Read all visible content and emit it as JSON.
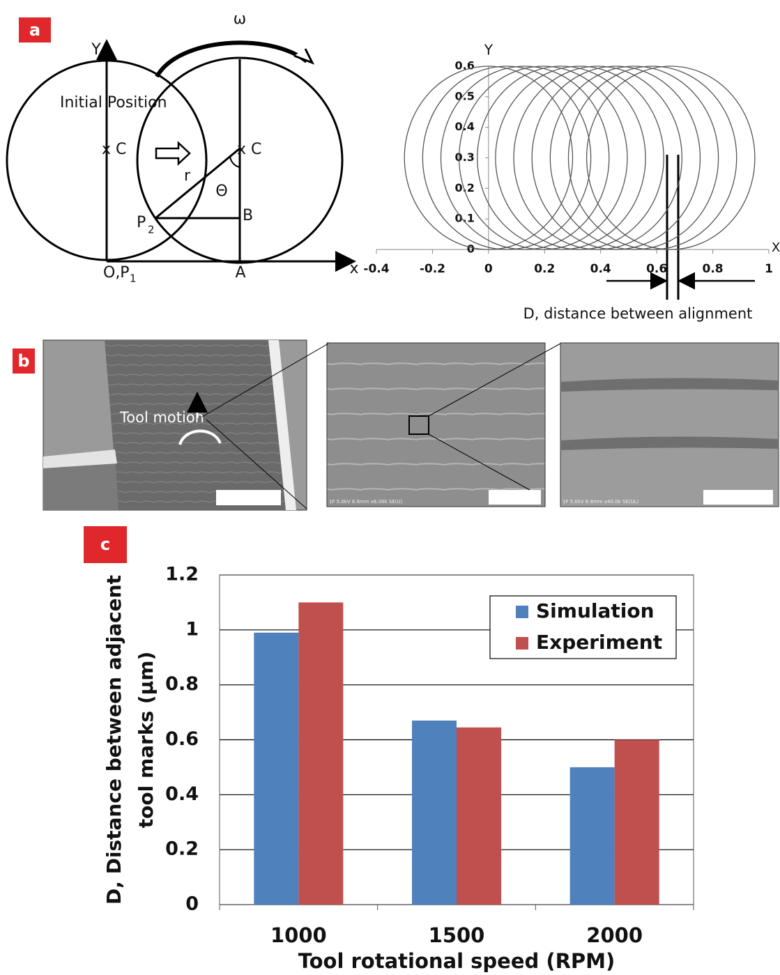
{
  "panel_a": {
    "label": "a",
    "omega": "ω",
    "y_axis": "Y",
    "x_axis": "x",
    "initial_position": "Initial Position",
    "center_left": "x C",
    "center_right": "x C",
    "radius": "r",
    "angle": "Θ",
    "p2": {
      "text": "P",
      "sub": "2"
    },
    "b_point": "B",
    "origin": {
      "text": "O,P",
      "sub": "1"
    },
    "a_point": "A"
  },
  "panel_b": {
    "label": "b",
    "tool_motion": "Tool motion",
    "sem_caption_1": "1F 5.0kV 6.6mm x6.00k SE(U)",
    "sem_caption_2": "1F 5.0kV 6.6mm x40.0k SE(UL)"
  },
  "panel_c": {
    "label": "c"
  },
  "chart_data": [
    {
      "type": "circle",
      "x_label": "X",
      "y_label": "Y",
      "annotation": "D, distance between alignment",
      "circles": {
        "cx": [
          0,
          0.065,
          0.13,
          0.195,
          0.26,
          0.325,
          0.39,
          0.455,
          0.52,
          0.585,
          0.65
        ],
        "cy": 0.3,
        "r": 0.3
      },
      "color": "#555555",
      "xlim": [
        -0.4,
        1
      ],
      "ylim": [
        0,
        0.6
      ],
      "xticks": [
        -0.4,
        -0.2,
        0,
        0.2,
        0.4,
        0.6,
        0.8,
        1
      ],
      "yticks": [
        0,
        0.1,
        0.2,
        0.3,
        0.4,
        0.5,
        0.6
      ]
    },
    {
      "type": "bar",
      "x_label": "Tool rotational speed (RPM)",
      "y_label": [
        "D, Distance between adjacent",
        "tool marks  (µm)"
      ],
      "categories": [
        "1000",
        "1500",
        "2000"
      ],
      "series": [
        {
          "name": "Simulation",
          "color": "#4f81bd",
          "values": [
            0.99,
            0.67,
            0.5
          ]
        },
        {
          "name": "Experiment",
          "color": "#c0504d",
          "values": [
            1.1,
            0.645,
            0.6
          ]
        }
      ],
      "ylim": [
        0,
        1.2
      ],
      "yticks": [
        0,
        0.2,
        0.4,
        0.6,
        0.8,
        1,
        1.2
      ],
      "grid": true,
      "legend": "top-right"
    }
  ]
}
